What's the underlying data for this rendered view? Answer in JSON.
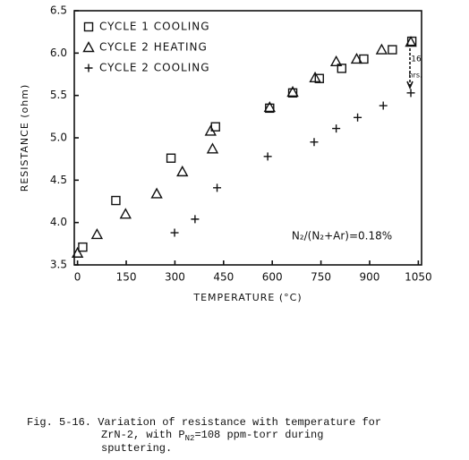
{
  "chart_data": {
    "type": "scatter",
    "x_label": "TEMPERATURE (°C)",
    "y_label": "RESISTANCE (ohm)",
    "xlim": [
      -10,
      1060
    ],
    "ylim": [
      3.5,
      6.5
    ],
    "xticks": [
      0,
      150,
      300,
      450,
      600,
      750,
      900,
      1050
    ],
    "yticks": [
      {
        "value": 3.5,
        "label": "3.5"
      },
      {
        "value": 4,
        "label": "4.0"
      },
      4.5,
      {
        "value": 5,
        "label": "5.0"
      },
      5.5,
      {
        "value": 6,
        "label": "6.0"
      },
      6.5
    ],
    "legend": "top-left",
    "series": [
      {
        "name": "CYCLE 1 COOLING",
        "marker": "square",
        "color": "#111111",
        "x": [
          16,
          118,
          288,
          425,
          592,
          663,
          745,
          814,
          882,
          970,
          1030
        ],
        "values": [
          3.71,
          4.26,
          4.76,
          5.13,
          5.35,
          5.53,
          5.7,
          5.82,
          5.93,
          6.04,
          6.14
        ]
      },
      {
        "name": "CYCLE 2 HEATING",
        "marker": "triangle",
        "color": "#111111",
        "x": [
          0,
          60,
          148,
          244,
          323,
          416,
          410,
          592,
          663,
          732,
          797,
          860,
          937,
          1027
        ],
        "values": [
          3.64,
          3.86,
          4.1,
          4.34,
          4.6,
          4.87,
          5.08,
          5.36,
          5.54,
          5.71,
          5.9,
          5.93,
          6.04,
          6.13
        ]
      },
      {
        "name": "CYCLE 2 COOLING",
        "marker": "plus",
        "color": "#111111",
        "x": [
          299,
          362,
          430,
          586,
          729,
          797,
          863,
          942,
          1027
        ],
        "values": [
          3.88,
          4.04,
          4.41,
          4.78,
          4.95,
          5.11,
          5.24,
          5.38,
          5.53
        ]
      }
    ],
    "annotations": [
      "16",
      "hrs.",
      "N₂/(N₂+Ar)=0.18%"
    ],
    "caption": {
      "line1": "Fig. 5-16. Variation of resistance with temperature for",
      "line2": [
        "ZrN-2, with P",
        "N2",
        "=108 ppm-torr during"
      ],
      "line3": "sputtering."
    }
  }
}
